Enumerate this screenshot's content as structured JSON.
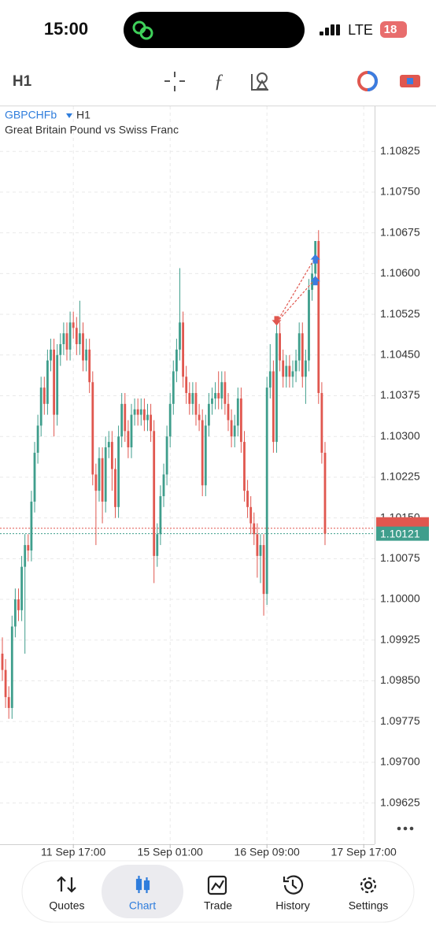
{
  "status_bar": {
    "time": "15:00",
    "network": "LTE",
    "battery": "18"
  },
  "toolbar": {
    "timeframe": "H1"
  },
  "chart_data": {
    "type": "candlestick",
    "symbol": "GBPCHFb",
    "timeframe": "H1",
    "description": "Great Britain Pound vs Swiss Franc",
    "up_color": "#3f9e8c",
    "down_color": "#e0574f",
    "grid": true,
    "candles": [
      [
        1.099,
        1.0993,
        1.0985,
        1.0987
      ],
      [
        1.0987,
        1.0989,
        1.098,
        1.0982
      ],
      [
        1.0982,
        1.0984,
        1.0978,
        1.098
      ],
      [
        1.098,
        1.0997,
        1.0978,
        1.0995
      ],
      [
        1.0995,
        1.1002,
        1.0993,
        1.1
      ],
      [
        1.1,
        1.1002,
        1.0996,
        1.0998
      ],
      [
        1.0998,
        1.1008,
        1.0996,
        1.1006
      ],
      [
        1.1006,
        1.1012,
        1.099,
        1.101
      ],
      [
        1.101,
        1.1012,
        1.1007,
        1.1009
      ],
      [
        1.1009,
        1.102,
        1.1007,
        1.1018
      ],
      [
        1.1018,
        1.1029,
        1.1016,
        1.1027
      ],
      [
        1.1027,
        1.1034,
        1.1025,
        1.1032
      ],
      [
        1.1032,
        1.1041,
        1.103,
        1.1039
      ],
      [
        1.1039,
        1.1041,
        1.1034,
        1.1036
      ],
      [
        1.1036,
        1.1046,
        1.1034,
        1.1044
      ],
      [
        1.1044,
        1.1048,
        1.1042,
        1.1046
      ],
      [
        1.1046,
        1.1048,
        1.103,
        1.1034
      ],
      [
        1.1034,
        1.1047,
        1.1032,
        1.1045
      ],
      [
        1.1045,
        1.1049,
        1.1043,
        1.1047
      ],
      [
        1.1047,
        1.1051,
        1.1045,
        1.1049
      ],
      [
        1.1049,
        1.1051,
        1.1044,
        1.1046
      ],
      [
        1.1046,
        1.1053,
        1.1044,
        1.1051
      ],
      [
        1.1051,
        1.1053,
        1.1048,
        1.105
      ],
      [
        1.105,
        1.1052,
        1.1045,
        1.1047
      ],
      [
        1.1047,
        1.1055,
        1.1045,
        1.1049
      ],
      [
        1.1049,
        1.1051,
        1.1042,
        1.1044
      ],
      [
        1.1044,
        1.1048,
        1.1042,
        1.1046
      ],
      [
        1.1046,
        1.1048,
        1.1038,
        1.104
      ],
      [
        1.104,
        1.1042,
        1.1021,
        1.1023
      ],
      [
        1.1023,
        1.1025,
        1.101,
        1.102
      ],
      [
        1.102,
        1.1028,
        1.1018,
        1.1026
      ],
      [
        1.1026,
        1.1028,
        1.1014,
        1.1018
      ],
      [
        1.1018,
        1.103,
        1.1016,
        1.1028
      ],
      [
        1.1028,
        1.1031,
        1.1026,
        1.1029
      ],
      [
        1.1029,
        1.1031,
        1.102,
        1.1024
      ],
      [
        1.1024,
        1.1026,
        1.1015,
        1.1017
      ],
      [
        1.1017,
        1.1032,
        1.1015,
        1.103
      ],
      [
        1.103,
        1.1038,
        1.1028,
        1.1036
      ],
      [
        1.1036,
        1.1038,
        1.1029,
        1.1031
      ],
      [
        1.1031,
        1.1033,
        1.1026,
        1.1028
      ],
      [
        1.1028,
        1.1036,
        1.1026,
        1.1034
      ],
      [
        1.1034,
        1.1037,
        1.1032,
        1.1035
      ],
      [
        1.1035,
        1.1037,
        1.1032,
        1.1034
      ],
      [
        1.1034,
        1.1037,
        1.1032,
        1.1035
      ],
      [
        1.1035,
        1.1037,
        1.1031,
        1.1033
      ],
      [
        1.1033,
        1.1036,
        1.1031,
        1.1034
      ],
      [
        1.1034,
        1.1036,
        1.1029,
        1.1031
      ],
      [
        1.1031,
        1.1033,
        1.1003,
        1.1008
      ],
      [
        1.1008,
        1.1014,
        1.1006,
        1.1012
      ],
      [
        1.1012,
        1.1021,
        1.101,
        1.1019
      ],
      [
        1.1019,
        1.1025,
        1.1017,
        1.1023
      ],
      [
        1.1023,
        1.1032,
        1.1021,
        1.103
      ],
      [
        1.103,
        1.1038,
        1.1028,
        1.1036
      ],
      [
        1.1036,
        1.1044,
        1.1034,
        1.1042
      ],
      [
        1.1042,
        1.1048,
        1.104,
        1.1046
      ],
      [
        1.1046,
        1.1061,
        1.1044,
        1.1051
      ],
      [
        1.1051,
        1.1053,
        1.1039,
        1.1041
      ],
      [
        1.1041,
        1.1043,
        1.1036,
        1.1038
      ],
      [
        1.1038,
        1.104,
        1.1034,
        1.1036
      ],
      [
        1.1036,
        1.104,
        1.1034,
        1.1038
      ],
      [
        1.1038,
        1.104,
        1.1032,
        1.1034
      ],
      [
        1.1034,
        1.1036,
        1.1031,
        1.1033
      ],
      [
        1.1033,
        1.1035,
        1.1019,
        1.1021
      ],
      [
        1.1021,
        1.1034,
        1.1019,
        1.1032
      ],
      [
        1.1032,
        1.1038,
        1.103,
        1.1036
      ],
      [
        1.1036,
        1.1039,
        1.1034,
        1.1037
      ],
      [
        1.1037,
        1.104,
        1.1035,
        1.1038
      ],
      [
        1.1038,
        1.1042,
        1.1035,
        1.1037
      ],
      [
        1.1037,
        1.1042,
        1.1035,
        1.104
      ],
      [
        1.104,
        1.1042,
        1.1034,
        1.1036
      ],
      [
        1.1036,
        1.1038,
        1.1031,
        1.1033
      ],
      [
        1.1033,
        1.1035,
        1.1028,
        1.103
      ],
      [
        1.103,
        1.1034,
        1.1028,
        1.1032
      ],
      [
        1.1032,
        1.1039,
        1.103,
        1.1037
      ],
      [
        1.1037,
        1.1039,
        1.1027,
        1.1029
      ],
      [
        1.1029,
        1.1031,
        1.1018,
        1.102
      ],
      [
        1.102,
        1.1022,
        1.1015,
        1.1017
      ],
      [
        1.1017,
        1.1019,
        1.1012,
        1.1014
      ],
      [
        1.1014,
        1.1016,
        1.101,
        1.1012
      ],
      [
        1.1012,
        1.1014,
        1.1004,
        1.1008
      ],
      [
        1.1008,
        1.1012,
        1.1003,
        1.101
      ],
      [
        1.101,
        1.1012,
        1.0997,
        1.1001
      ],
      [
        1.1001,
        1.1041,
        1.0999,
        1.1039
      ],
      [
        1.1039,
        1.1047,
        1.1037,
        1.1042
      ],
      [
        1.1042,
        1.1044,
        1.1027,
        1.1029
      ],
      [
        1.1029,
        1.1051,
        1.1027,
        1.1049
      ],
      [
        1.1049,
        1.1051,
        1.1042,
        1.1044
      ],
      [
        1.1044,
        1.1046,
        1.1039,
        1.1041
      ],
      [
        1.1041,
        1.1045,
        1.1039,
        1.1043
      ],
      [
        1.1043,
        1.1045,
        1.1039,
        1.1041
      ],
      [
        1.1041,
        1.1044,
        1.1039,
        1.1042
      ],
      [
        1.1042,
        1.1046,
        1.104,
        1.1044
      ],
      [
        1.1044,
        1.1051,
        1.1042,
        1.1049
      ],
      [
        1.1049,
        1.1051,
        1.1039,
        1.1041
      ],
      [
        1.1041,
        1.1046,
        1.1036,
        1.1044
      ],
      [
        1.1044,
        1.1059,
        1.1042,
        1.1057
      ],
      [
        1.1057,
        1.1062,
        1.1055,
        1.106
      ],
      [
        1.106,
        1.1066,
        1.1058,
        1.1066
      ],
      [
        1.1066,
        1.1068,
        1.1036,
        1.1038
      ],
      [
        1.1038,
        1.104,
        1.1025,
        1.1027
      ],
      [
        1.1027,
        1.1029,
        1.101,
        1.10121
      ]
    ],
    "xlim": [
      -0.73,
      115.37
    ],
    "xticks": [
      {
        "value": 22,
        "label": "11 Sep 17:00"
      },
      {
        "value": 52,
        "label": "15 Sep 01:00"
      },
      {
        "value": 82,
        "label": "16 Sep 09:00"
      },
      {
        "value": 112,
        "label": "17 Sep 17:00"
      }
    ],
    "ylim": [
      1.09549,
      1.10908
    ],
    "yticks": [
      1.10825,
      {
        "value": 1.1075,
        "label": "1.10750"
      },
      1.10675,
      {
        "value": 1.106,
        "label": "1.10600"
      },
      1.10525,
      {
        "value": 1.1045,
        "label": "1.10450"
      },
      1.10375,
      {
        "value": 1.103,
        "label": "1.10300"
      },
      1.10225,
      {
        "value": 1.1015,
        "label": "1.10150"
      },
      1.10075,
      {
        "value": 1.1,
        "label": "1.10000"
      },
      1.09925,
      {
        "value": 1.0985,
        "label": "1.09850"
      },
      1.09775,
      {
        "value": 1.097,
        "label": "1.09700"
      },
      1.09625
    ],
    "bid": 1.10121,
    "bid_color": "#3f9e8c",
    "ask": 1.10131,
    "ask_color": "#e0574f",
    "trade_marks": [
      {
        "index": 85,
        "price": 1.1051,
        "color": "#e0574f",
        "direction": "down"
      },
      {
        "index": 97,
        "price": 1.1063,
        "color": "#3b7de0",
        "direction": "up"
      },
      {
        "index": 97,
        "price": 1.1059,
        "color": "#3b7de0",
        "direction": "up"
      }
    ]
  },
  "nav": {
    "items": [
      "Quotes",
      "Chart",
      "Trade",
      "History",
      "Settings"
    ],
    "active": 1
  }
}
